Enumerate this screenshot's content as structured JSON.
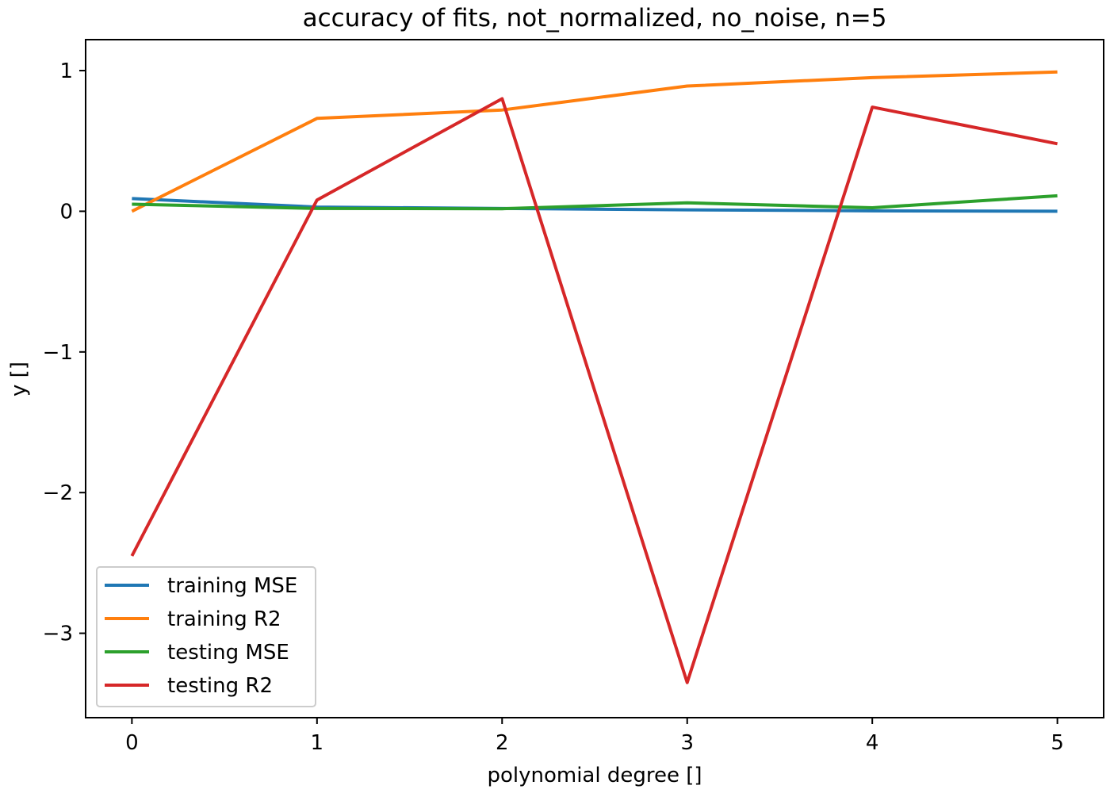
{
  "chart_data": {
    "type": "line",
    "title": "accuracy of fits, not_normalized, no_noise, n=5",
    "xlabel": "polynomial degree []",
    "ylabel": "y []",
    "x": [
      0,
      1,
      2,
      3,
      4,
      5
    ],
    "xlim": [
      -0.25,
      5.25
    ],
    "ylim": [
      -3.6,
      1.22
    ],
    "xticks": [
      0,
      1,
      2,
      3,
      4,
      5
    ],
    "yticks": [
      -3,
      -2,
      -1,
      0,
      1
    ],
    "ytick_labels": [
      "−3",
      "−2",
      "−1",
      "0",
      "1"
    ],
    "grid": false,
    "legend_position": "lower-left",
    "series": [
      {
        "name": "training MSE",
        "color": "#1f77b4",
        "values": [
          0.09,
          0.03,
          0.02,
          0.01,
          0.003,
          0.0
        ]
      },
      {
        "name": "training R2",
        "color": "#ff7f0e",
        "values": [
          0.0,
          0.66,
          0.72,
          0.89,
          0.95,
          0.99
        ]
      },
      {
        "name": "testing MSE",
        "color": "#2ca02c",
        "values": [
          0.05,
          0.02,
          0.018,
          0.06,
          0.025,
          0.11
        ]
      },
      {
        "name": "testing R2",
        "color": "#d62728",
        "values": [
          -2.45,
          0.08,
          0.8,
          -3.35,
          0.74,
          0.48
        ]
      }
    ]
  }
}
